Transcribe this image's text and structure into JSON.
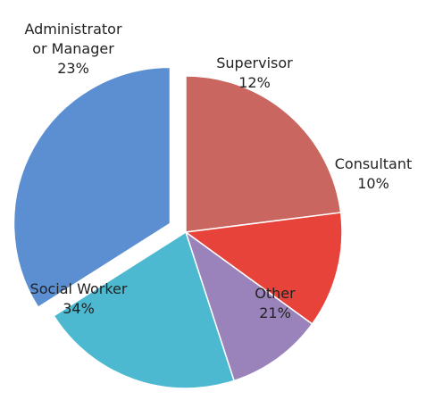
{
  "chart_data": {
    "type": "pie",
    "categories": [
      "Administrator or Manager",
      "Supervisor",
      "Consultant",
      "Other",
      "Social Worker"
    ],
    "values": [
      23,
      12,
      10,
      21,
      34
    ],
    "value_labels": [
      "23%",
      "12%",
      "10%",
      "21%",
      "34%"
    ],
    "colors": [
      "#c8665f",
      "#e8433b",
      "#9a82bb",
      "#4cb9d1",
      "#5c8fd1"
    ],
    "exploded": "Social Worker"
  }
}
